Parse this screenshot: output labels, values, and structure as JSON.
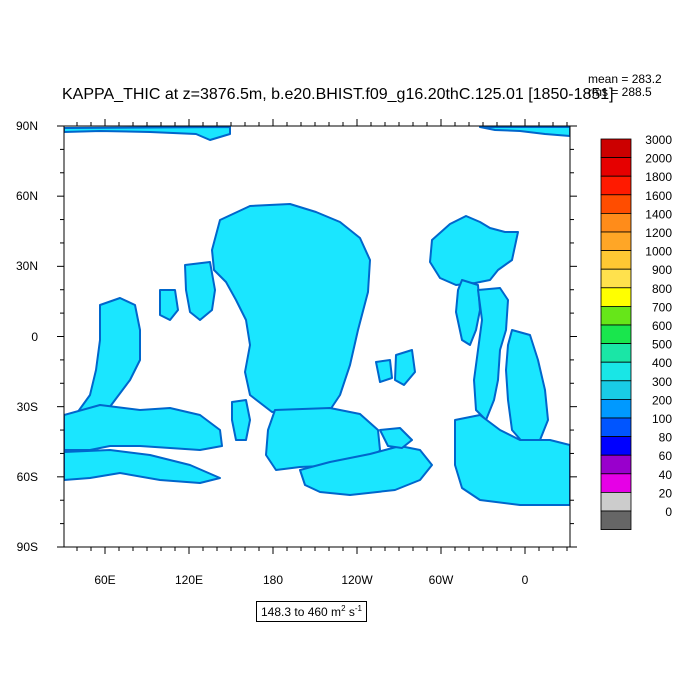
{
  "title": "KAPPA_THIC at z=3876.5m, b.e20.BHIST.f09_g16.20thC.125.01 [1850-1851]",
  "stats": {
    "mean": "mean = 283.2",
    "rms": "rms = 288.5"
  },
  "range": {
    "text": "148.3 to 460 m",
    "unit_sup1": "2",
    "unit_mid": " s",
    "unit_sup2": "-1"
  },
  "lat_labels": [
    "90N",
    "60N",
    "30N",
    "0",
    "30S",
    "60S",
    "90S"
  ],
  "lon_labels": [
    "60E",
    "120E",
    "180",
    "120W",
    "60W",
    "0"
  ],
  "colorbar": {
    "labels": [
      "3000",
      "2000",
      "1800",
      "1600",
      "1400",
      "1200",
      "1000",
      "900",
      "800",
      "700",
      "600",
      "500",
      "400",
      "300",
      "200",
      "100",
      "80",
      "60",
      "40",
      "20",
      "0"
    ],
    "colors": [
      "#cc0000",
      "#e60000",
      "#ff1a00",
      "#ff4d00",
      "#ff8c1a",
      "#ffa626",
      "#ffc833",
      "#ffe14d",
      "#ffff00",
      "#66e619",
      "#19e64d",
      "#1ae6a6",
      "#19e6e6",
      "#19cce6",
      "#0099ff",
      "#0055ff",
      "#0000ff",
      "#9900cc",
      "#e600e6",
      "#cccccc",
      "#666666"
    ]
  },
  "map_fill": {
    "main": "#1ae6ff",
    "secondary": "#19b4f0",
    "edge": "#0066cc",
    "outline": "#000000"
  }
}
